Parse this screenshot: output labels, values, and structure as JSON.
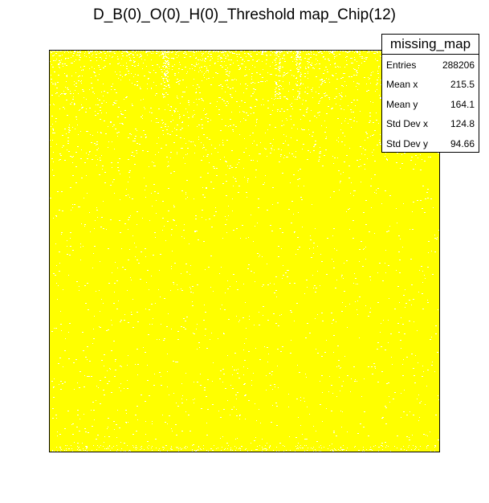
{
  "chart_data": {
    "type": "heatmap",
    "title": "D_B(0)_O(0)_H(0)_Threshold map_Chip(12)",
    "xlabel": "",
    "ylabel": "",
    "fill_color": "#ffff00",
    "background_color": "#ffffff",
    "stats_box": {
      "title": "missing_map",
      "rows": [
        {
          "label": "Entries",
          "value": "288206"
        },
        {
          "label": "Mean x",
          "value": "215.5"
        },
        {
          "label": "Mean y",
          "value": "164.1"
        },
        {
          "label": "Std Dev x",
          "value": "124.8"
        },
        {
          "label": "Std Dev y",
          "value": "94.66"
        }
      ]
    },
    "grid": false
  }
}
